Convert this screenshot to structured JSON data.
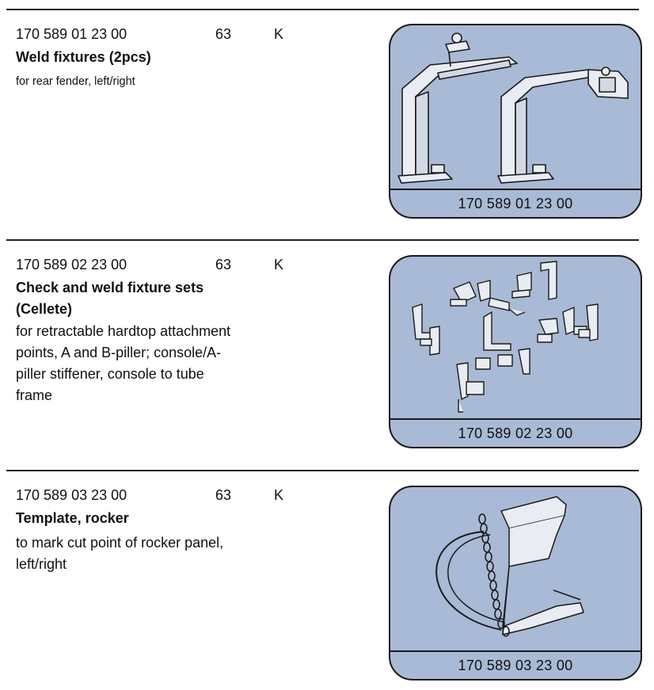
{
  "entries": [
    {
      "part_number": "170 589 01 23 00",
      "qty": "63",
      "code": "K",
      "title_lines": [
        "Weld fixtures (2pcs)"
      ],
      "desc_lines": [
        "for rear fender, left/right"
      ],
      "caption": "170 589 01 23 00",
      "illustration": "weld-fixtures-drawing"
    },
    {
      "part_number": "170 589 02 23 00",
      "qty": "63",
      "code": "K",
      "title_lines": [
        "Check and weld fixture sets",
        "(Cellete)"
      ],
      "desc_lines": [
        "for retractable hardtop attachment",
        "points, A and B-piller; console/A-",
        "piller stiffener, console to tube",
        "frame"
      ],
      "caption": "170 589 02 23 00",
      "illustration": "fixture-sets-drawing"
    },
    {
      "part_number": "170 589 03 23 00",
      "qty": "63",
      "code": "K",
      "title_lines": [
        "Template, rocker"
      ],
      "desc_lines": [
        "to mark cut point of rocker panel,",
        "left/right"
      ],
      "caption": "170 589 03 23 00",
      "illustration": "rocker-template-drawing"
    }
  ],
  "colors": {
    "panel_fill": "#a9bad6",
    "ink": "#1a1a1a"
  }
}
